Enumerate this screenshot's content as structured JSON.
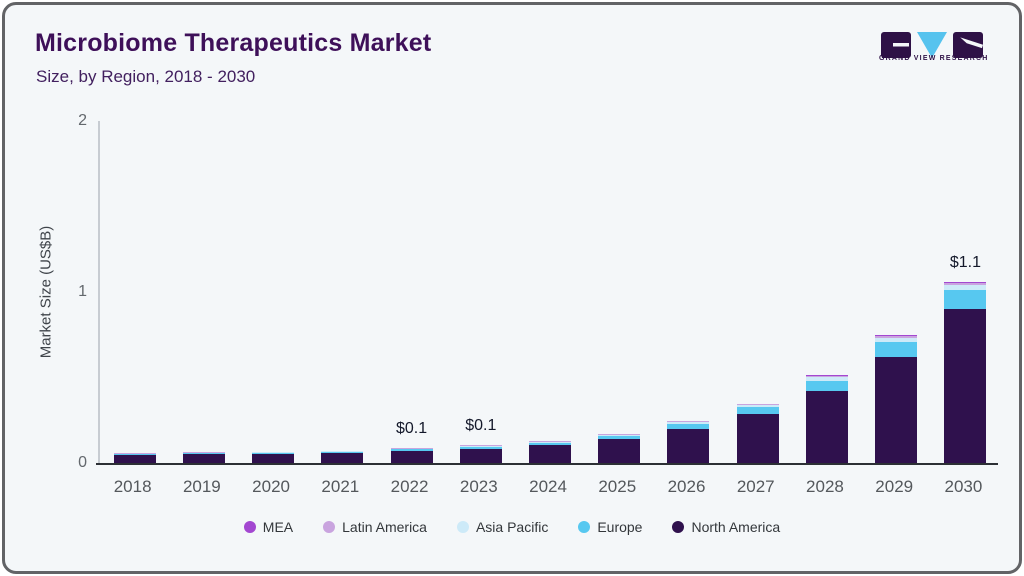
{
  "card": {
    "title": "Microbiome Therapeutics Market",
    "subtitle": "Size, by Region, 2018 - 2030",
    "logo_text": "GRAND VIEW RESEARCH"
  },
  "chart_data": {
    "type": "bar",
    "stacked": true,
    "title": "Microbiome Therapeutics Market Size, by Region, 2018 - 2030",
    "xlabel": "",
    "ylabel": "Market Size (US$B)",
    "ylim": [
      0,
      2
    ],
    "yticks": [
      0,
      1,
      2
    ],
    "grid": false,
    "legend_position": "bottom",
    "categories": [
      "2018",
      "2019",
      "2020",
      "2021",
      "2022",
      "2023",
      "2024",
      "2025",
      "2026",
      "2027",
      "2028",
      "2029",
      "2030"
    ],
    "series": [
      {
        "name": "North America",
        "color": "#2F114D",
        "values": [
          0.046,
          0.05,
          0.052,
          0.058,
          0.07,
          0.084,
          0.104,
          0.14,
          0.2,
          0.286,
          0.424,
          0.618,
          0.9
        ]
      },
      {
        "name": "Europe",
        "color": "#57C8F0",
        "values": [
          0.006,
          0.007,
          0.008,
          0.008,
          0.01,
          0.012,
          0.014,
          0.018,
          0.028,
          0.04,
          0.058,
          0.088,
          0.11
        ]
      },
      {
        "name": "Asia Pacific",
        "color": "#CDEAF8",
        "values": [
          0.003,
          0.003,
          0.003,
          0.004,
          0.004,
          0.005,
          0.006,
          0.007,
          0.01,
          0.012,
          0.02,
          0.026,
          0.03
        ]
      },
      {
        "name": "Latin America",
        "color": "#C9A4DF",
        "values": [
          0.002,
          0.002,
          0.002,
          0.002,
          0.002,
          0.002,
          0.002,
          0.003,
          0.005,
          0.005,
          0.008,
          0.01,
          0.012
        ]
      },
      {
        "name": "MEA",
        "color": "#A347D1",
        "values": [
          0.001,
          0.001,
          0.001,
          0.001,
          0.002,
          0.002,
          0.002,
          0.002,
          0.003,
          0.003,
          0.004,
          0.006,
          0.008
        ]
      }
    ],
    "legend_order": [
      "MEA",
      "Latin America",
      "Asia Pacific",
      "Europe",
      "North America"
    ],
    "annotations": [
      {
        "category": "2022",
        "label": "$0.1"
      },
      {
        "category": "2023",
        "label": "$0.1"
      },
      {
        "category": "2030",
        "label": "$1.1"
      }
    ]
  }
}
